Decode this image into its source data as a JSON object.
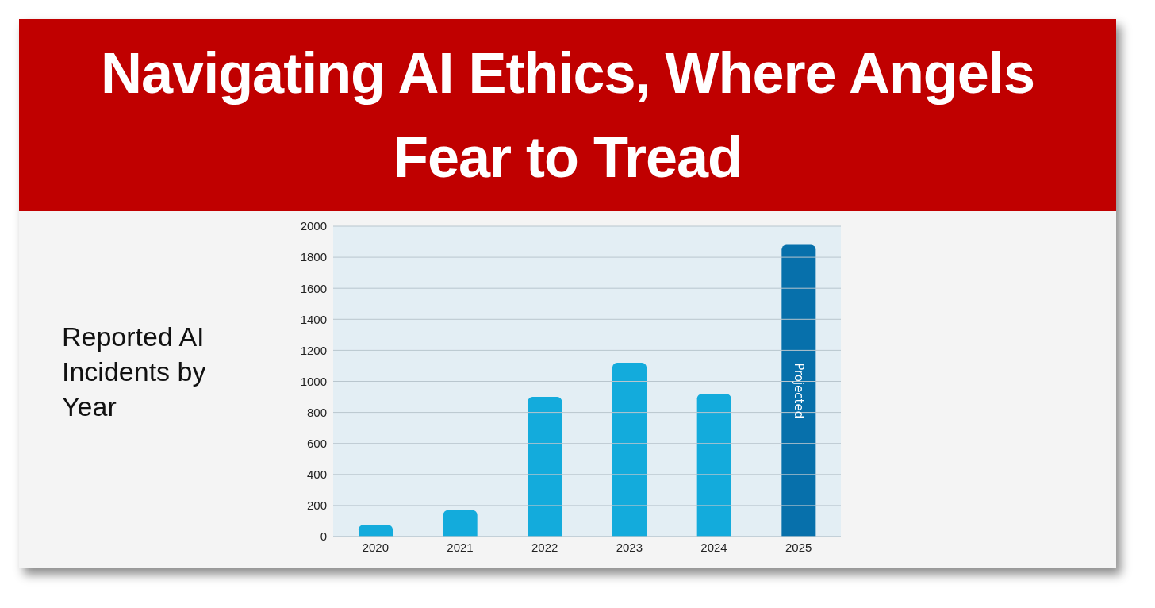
{
  "chart_data": {
    "type": "bar",
    "title": "Navigating AI Ethics, Where Angels Fear to Tread",
    "subtitle": "Reported AI Incidents by Year",
    "categories": [
      "2020",
      "2021",
      "2022",
      "2023",
      "2024",
      "2025"
    ],
    "values": [
      75,
      170,
      900,
      1120,
      920,
      1880
    ],
    "colors": [
      "#13abdc",
      "#13abdc",
      "#13abdc",
      "#13abdc",
      "#13abdc",
      "#0770ab"
    ],
    "ylim": [
      0,
      2000
    ],
    "yticks": [
      0,
      200,
      400,
      600,
      800,
      1000,
      1200,
      1400,
      1600,
      1800,
      2000
    ],
    "grid": "y",
    "annotations": [
      "Projected"
    ]
  }
}
